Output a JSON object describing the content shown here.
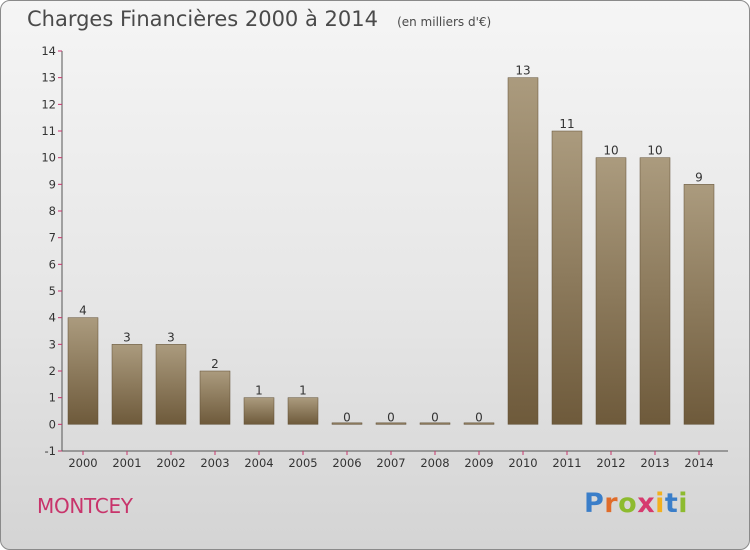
{
  "header": {
    "title": "Charges Financières 2000 à 2014",
    "unit": "(en milliers d'€)"
  },
  "commune": "MONTCEY",
  "logo": {
    "text": "Proxiti",
    "letters": [
      {
        "ch": "P",
        "color": "#3a7ec9"
      },
      {
        "ch": "r",
        "color": "#e06c2a"
      },
      {
        "ch": "o",
        "color": "#8dbb2f"
      },
      {
        "ch": "x",
        "color": "#d63a6e"
      },
      {
        "ch": "i",
        "color": "#f2b01e"
      },
      {
        "ch": "t",
        "color": "#3a7ec9"
      },
      {
        "ch": "i",
        "color": "#8dbb2f"
      }
    ]
  },
  "colors": {
    "bar_top": "#ab9b7e",
    "bar_bottom": "#6e5a3b",
    "axis": "#555555",
    "tick": "#c8346b",
    "background": "#e6e6e6"
  },
  "chart_data": {
    "type": "bar",
    "categories": [
      "2000",
      "2001",
      "2002",
      "2003",
      "2004",
      "2005",
      "2006",
      "2007",
      "2008",
      "2009",
      "2010",
      "2011",
      "2012",
      "2013",
      "2014"
    ],
    "values": [
      4,
      3,
      3,
      2,
      1,
      1,
      0,
      0,
      0,
      0,
      13,
      11,
      10,
      10,
      9
    ],
    "data_labels": [
      "4",
      "3",
      "3",
      "2",
      "1",
      "1",
      "0",
      "0",
      "0",
      "0",
      "13",
      "11",
      "10",
      "10",
      "9"
    ],
    "ylim": [
      -1,
      14
    ],
    "yticks": [
      -1,
      0,
      1,
      2,
      3,
      4,
      5,
      6,
      7,
      8,
      9,
      10,
      11,
      12,
      13,
      14
    ],
    "grid": false,
    "legend": "none"
  }
}
